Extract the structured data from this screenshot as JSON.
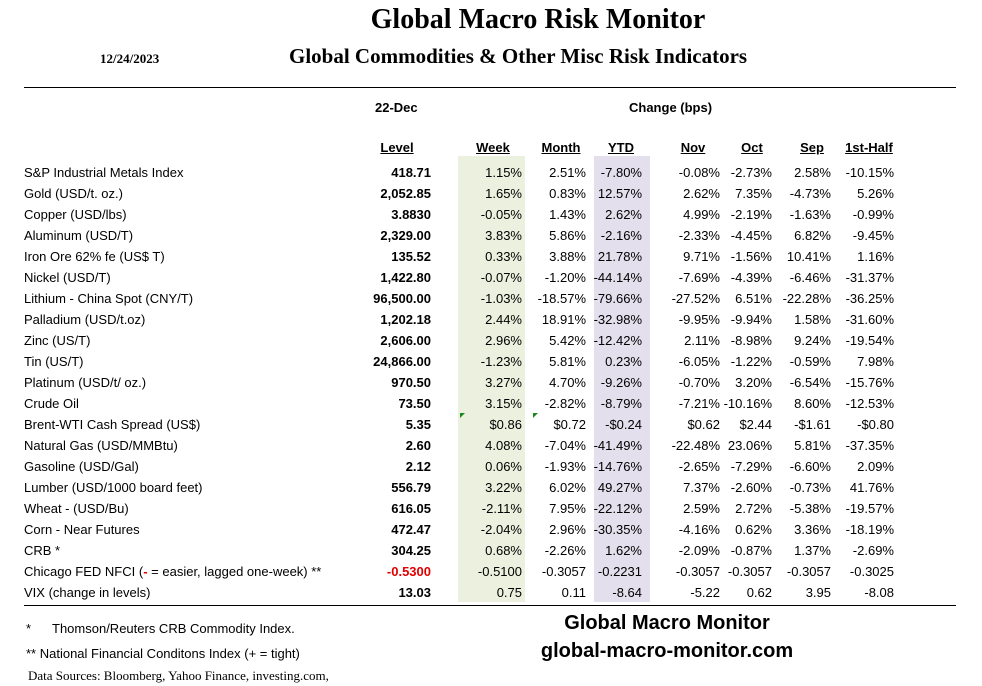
{
  "header": {
    "title": "Global Macro Risk Monitor",
    "date": "12/24/2023",
    "subtitle": "Global Commodities & Other Misc Risk Indicators",
    "as_of": "22-Dec",
    "change_label": "Change (bps)"
  },
  "columns": {
    "level": "Level",
    "week": "Week",
    "month": "Month",
    "ytd": "YTD",
    "nov": "Nov",
    "oct": "Oct",
    "sep": "Sep",
    "half": "1st-Half"
  },
  "rows": [
    {
      "label": "S&P Industrial Metals Index",
      "level": "418.71",
      "week": "1.15%",
      "month": "2.51%",
      "ytd": "-7.80%",
      "nov": "-0.08%",
      "oct": "-2.73%",
      "sep": "2.58%",
      "half": "-10.15%"
    },
    {
      "label": "Gold (USD/t. oz.)",
      "level": "2,052.85",
      "week": "1.65%",
      "month": "0.83%",
      "ytd": "12.57%",
      "nov": "2.62%",
      "oct": "7.35%",
      "sep": "-4.73%",
      "half": "5.26%"
    },
    {
      "label": "Copper (USD/lbs)",
      "level": "3.8830",
      "week": "-0.05%",
      "month": "1.43%",
      "ytd": "2.62%",
      "nov": "4.99%",
      "oct": "-2.19%",
      "sep": "-1.63%",
      "half": "-0.99%"
    },
    {
      "label": "Aluminum (USD/T)",
      "level": "2,329.00",
      "week": "3.83%",
      "month": "5.86%",
      "ytd": "-2.16%",
      "nov": "-2.33%",
      "oct": "-4.45%",
      "sep": "6.82%",
      "half": "-9.45%"
    },
    {
      "label": "Iron Ore 62% fe (US$ T)",
      "level": "135.52",
      "week": "0.33%",
      "month": "3.88%",
      "ytd": "21.78%",
      "nov": "9.71%",
      "oct": "-1.56%",
      "sep": "10.41%",
      "half": "1.16%"
    },
    {
      "label": "Nickel (USD/T)",
      "level": "1,422.80",
      "week": "-0.07%",
      "month": "-1.20%",
      "ytd": "-44.14%",
      "nov": "-7.69%",
      "oct": "-4.39%",
      "sep": "-6.46%",
      "half": "-31.37%"
    },
    {
      "label": "Lithium - China Spot (CNY/T)",
      "level": "96,500.00",
      "week": "-1.03%",
      "month": "-18.57%",
      "ytd": "-79.66%",
      "nov": "-27.52%",
      "oct": "6.51%",
      "sep": "-22.28%",
      "half": "-36.25%"
    },
    {
      "label": "Palladium (USD/t.oz)",
      "level": "1,202.18",
      "week": "2.44%",
      "month": "18.91%",
      "ytd": "-32.98%",
      "nov": "-9.95%",
      "oct": "-9.94%",
      "sep": "1.58%",
      "half": "-31.60%"
    },
    {
      "label": "Zinc (US/T)",
      "level": "2,606.00",
      "week": "2.96%",
      "month": "5.42%",
      "ytd": "-12.42%",
      "nov": "2.11%",
      "oct": "-8.98%",
      "sep": "9.24%",
      "half": "-19.54%"
    },
    {
      "label": "Tin (US/T)",
      "level": "24,866.00",
      "week": "-1.23%",
      "month": "5.81%",
      "ytd": "0.23%",
      "nov": "-6.05%",
      "oct": "-1.22%",
      "sep": "-0.59%",
      "half": "7.98%"
    },
    {
      "label": "Platinum (USD/t/ oz.)",
      "level": "970.50",
      "week": "3.27%",
      "month": "4.70%",
      "ytd": "-9.26%",
      "nov": "-0.70%",
      "oct": "3.20%",
      "sep": "-6.54%",
      "half": "-15.76%"
    },
    {
      "label": "Crude Oil",
      "level": "73.50",
      "week": "3.15%",
      "month": "-2.82%",
      "ytd": "-8.79%",
      "nov": "-7.21%",
      "oct": "-10.16%",
      "sep": "8.60%",
      "half": "-12.53%"
    },
    {
      "label": "Brent-WTI Cash Spread (US$)",
      "level": "5.35",
      "week": "$0.86",
      "month": "$0.72",
      "ytd": "-$0.24",
      "nov": "$0.62",
      "oct": "$2.44",
      "sep": "-$1.61",
      "half": "-$0.80"
    },
    {
      "label": "Natural Gas  (USD/MMBtu)",
      "level": "2.60",
      "week": "4.08%",
      "month": "-7.04%",
      "ytd": "-41.49%",
      "nov": "-22.48%",
      "oct": "23.06%",
      "sep": "5.81%",
      "half": "-37.35%"
    },
    {
      "label": "Gasoline (USD/Gal)",
      "level": "2.12",
      "week": "0.06%",
      "month": "-1.93%",
      "ytd": "-14.76%",
      "nov": "-2.65%",
      "oct": "-7.29%",
      "sep": "-6.60%",
      "half": "2.09%"
    },
    {
      "label": "Lumber (USD/1000 board feet)",
      "level": "556.79",
      "week": "3.22%",
      "month": "6.02%",
      "ytd": "49.27%",
      "nov": "7.37%",
      "oct": "-2.60%",
      "sep": "-0.73%",
      "half": "41.76%"
    },
    {
      "label": "Wheat - (USD/Bu)",
      "level": "616.05",
      "week": "-2.11%",
      "month": "7.95%",
      "ytd": "-22.12%",
      "nov": "2.59%",
      "oct": "2.72%",
      "sep": "-5.38%",
      "half": "-19.57%"
    },
    {
      "label": "Corn - Near Futures",
      "level": "472.47",
      "week": "-2.04%",
      "month": "2.96%",
      "ytd": "-30.35%",
      "nov": "-4.16%",
      "oct": "0.62%",
      "sep": "3.36%",
      "half": "-18.19%"
    },
    {
      "label": "CRB *",
      "level": "304.25",
      "week": "0.68%",
      "month": "-2.26%",
      "ytd": "1.62%",
      "nov": "-2.09%",
      "oct": "-0.87%",
      "sep": "1.37%",
      "half": "-2.69%"
    },
    {
      "label": "Chicago FED NFCI (- = easier, lagged one-week) **",
      "level": "-0.5300",
      "week": "-0.5100",
      "month": "-0.3057",
      "ytd": "-0.2231",
      "nov": "-0.3057",
      "oct": "-0.3057",
      "sep": "-0.3057",
      "half": "-0.3025"
    },
    {
      "label": "VIX (change in levels)",
      "level": "13.03",
      "week": "0.75",
      "month": "0.11",
      "ytd": "-8.64",
      "nov": "-5.22",
      "oct": "0.62",
      "sep": "3.95",
      "half": "-8.08"
    }
  ],
  "nfci_label": {
    "pre": "Chicago FED NFCI (",
    "dash": "-",
    "post": " = easier, lagged one-week) **"
  },
  "footer": {
    "note1_mark": "*",
    "note1": "Thomson/Reuters CRB Commodity Index.",
    "note2": "** National Financial Conditons Index (+ = tight)",
    "sources": "Data Sources:  Bloomberg,  Yahoo Finance, investing.com,",
    "brand": "Global Macro Monitor",
    "url": "global-macro-monitor.com"
  },
  "colors": {
    "week_shade": "#ebf1de",
    "ytd_shade": "#e4dfec",
    "negative_red": "#e00000",
    "comment_marker": "#1a8a1a"
  }
}
